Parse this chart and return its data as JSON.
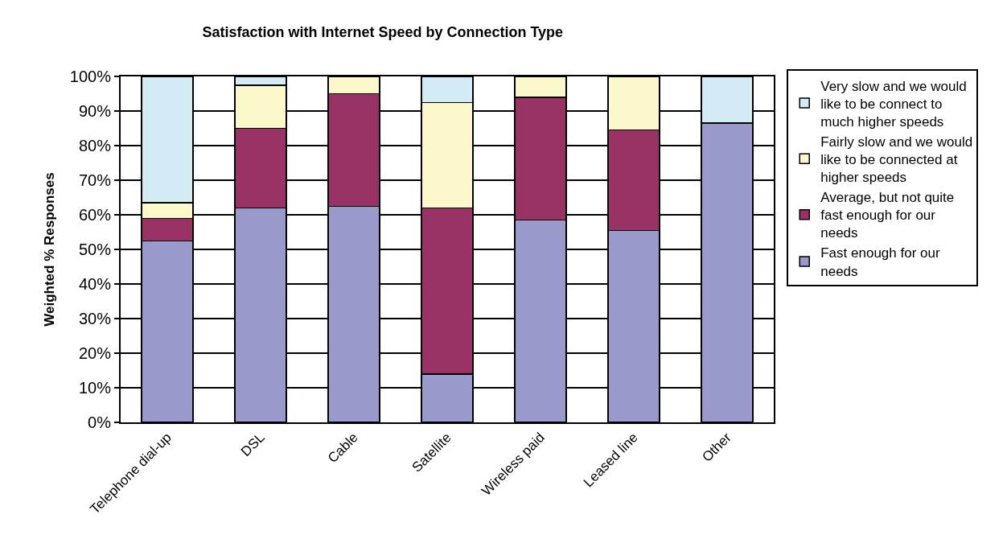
{
  "chart_data": {
    "type": "bar",
    "stacked": true,
    "title": "Satisfaction with Internet Speed by Connection Type",
    "ylabel": "Weighted % Responses",
    "categories": [
      "Telephone dial-up",
      "DSL",
      "Cable",
      "Satellite",
      "Wireless paid",
      "Leased line",
      "Other"
    ],
    "series": [
      {
        "name": "Fast enough for our needs",
        "color": "#9999cc",
        "values": [
          52.5,
          62,
          62.5,
          14,
          58.5,
          55.5,
          86.5
        ]
      },
      {
        "name": "Average, but not quite fast enough for our needs",
        "color": "#993366",
        "values": [
          6.5,
          23,
          32.5,
          48,
          35.5,
          29,
          0
        ]
      },
      {
        "name": "Fairly slow and we would like to be connected at higher speeds",
        "color": "#fbf8cc",
        "values": [
          4.5,
          12.5,
          5,
          30.5,
          6,
          15.5,
          0
        ]
      },
      {
        "name": "Very slow and we would like to be connect to much higher speeds",
        "color": "#d2ebf4",
        "values": [
          36.5,
          2.5,
          0,
          7.5,
          0,
          0,
          13.5
        ]
      }
    ],
    "ylim": [
      0,
      100
    ],
    "yticks": [
      {
        "value": 0,
        "label": "0%"
      },
      {
        "value": 10,
        "label": "10%"
      },
      {
        "value": 20,
        "label": "20%"
      },
      {
        "value": 30,
        "label": "30%"
      },
      {
        "value": 40,
        "label": "40%"
      },
      {
        "value": 50,
        "label": "50%"
      },
      {
        "value": 60,
        "label": "60%"
      },
      {
        "value": 70,
        "label": "70%"
      },
      {
        "value": 80,
        "label": "80%"
      },
      {
        "value": 90,
        "label": "90%"
      },
      {
        "value": 100,
        "label": "100%"
      }
    ],
    "grid": "y",
    "legend": "right"
  }
}
